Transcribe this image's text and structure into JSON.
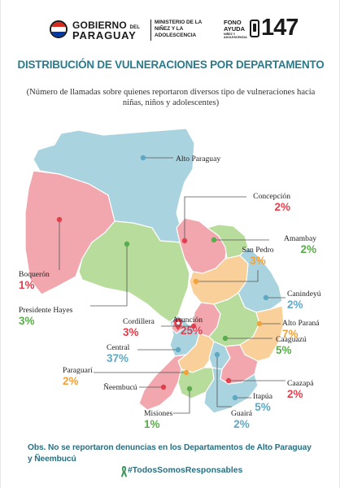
{
  "header": {
    "gov_line1": "GOBIERNO",
    "gov_del": "DEL",
    "gov_line2": "PARAGUAY",
    "ministry": "MINISTERIO DE LA NIÑEZ Y LA ADOLESCENCIA",
    "fono_line1": "FONO",
    "fono_line2": "AYUDA",
    "fono_small": "NIÑEZ Y ADOLESCENCIA",
    "fono_number": "147"
  },
  "title": "DISTRIBUCIÓN DE VULNERACIONES POR DEPARTAMENTO",
  "subtitle": "(Número de llamadas sobre quienes reportaron diversos tipo de vulneraciones hacia niñas, niños y adolescentes)",
  "departments": [
    {
      "name": "Alto Paraguay",
      "value": "",
      "color": "#5fa8c3"
    },
    {
      "name": "Concepción",
      "value": "2%",
      "color": "#e0414f"
    },
    {
      "name": "Amambay",
      "value": "2%",
      "color": "#5aab4b"
    },
    {
      "name": "San Pedro",
      "value": "3%",
      "color": "#f3a23b"
    },
    {
      "name": "Boquerón",
      "value": "1%",
      "color": "#e0414f"
    },
    {
      "name": "Presidente Hayes",
      "value": "3%",
      "color": "#5aab4b"
    },
    {
      "name": "Canindeyú",
      "value": "2%",
      "color": "#5fa8c3"
    },
    {
      "name": "Asunción",
      "value": "25%",
      "color": "#e0414f"
    },
    {
      "name": "Cordillera",
      "value": "3%",
      "color": "#e0414f"
    },
    {
      "name": "Alto Paraná",
      "value": "7%",
      "color": "#f3a23b"
    },
    {
      "name": "Central",
      "value": "37%",
      "color": "#5fa8c3"
    },
    {
      "name": "Caaguazú",
      "value": "5%",
      "color": "#5aab4b"
    },
    {
      "name": "Paraguarí",
      "value": "2%",
      "color": "#f3a23b"
    },
    {
      "name": "Caazapá",
      "value": "2%",
      "color": "#e0414f"
    },
    {
      "name": "Ñeembucú",
      "value": "",
      "color": "#e0414f"
    },
    {
      "name": "Itapúa",
      "value": "5%",
      "color": "#5fa8c3"
    },
    {
      "name": "Misiones",
      "value": "1%",
      "color": "#5aab4b"
    },
    {
      "name": "Guairá",
      "value": "2%",
      "color": "#5fa8c3"
    }
  ],
  "colors": {
    "red": "#e0414f",
    "green": "#5aab4b",
    "orange": "#f3a23b",
    "blue": "#5fa8c3",
    "title": "#2a7a8c"
  },
  "note": "Obs. No se reportaron denuncias en los Departamentos de Alto Paraguay y Ñeembucú",
  "hashtag": "#TodosSomosResponsables"
}
